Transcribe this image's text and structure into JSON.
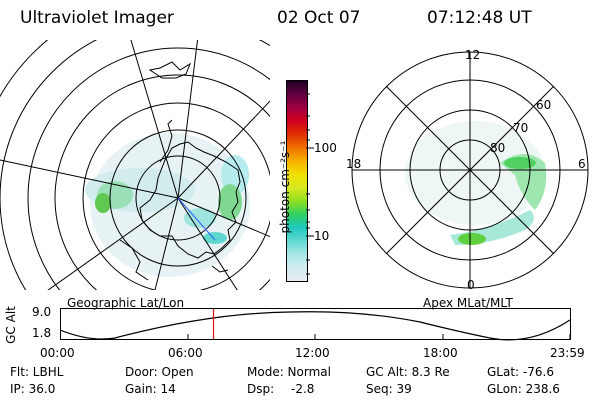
{
  "header": {
    "title": "Ultraviolet Imager",
    "date": "02 Oct 07",
    "time": "07:12:48 UT"
  },
  "left_map": {
    "caption": "Geographic Lat/Lon"
  },
  "right_map": {
    "caption": "Apex MLat/MLT",
    "mlt_labels": [
      "12",
      "18",
      "6",
      "0"
    ],
    "mlat_labels": [
      "60",
      "70",
      "80"
    ]
  },
  "colorbar": {
    "unit_label": "photon cm⁻²s⁻¹",
    "tick_labels": [
      "100",
      "10"
    ],
    "colors": [
      "#e8eef0",
      "#d0eaf0",
      "#a8e8e8",
      "#60d8d0",
      "#20c8c0",
      "#30d060",
      "#90e020",
      "#d8e820",
      "#f0e000",
      "#f8b000",
      "#f07000",
      "#e03000",
      "#d00020",
      "#a00040",
      "#600040",
      "#200020"
    ]
  },
  "altitude_plot": {
    "ylabel": "GC Alt",
    "y_ticks": [
      "9.0",
      "1.8"
    ],
    "x_ticks": [
      "00:00",
      "06:00",
      "12:00",
      "18:00",
      "23:59"
    ],
    "current_time_fraction": 0.3
  },
  "info": {
    "row1": {
      "filter": "Flt: LBHL",
      "door": "Door: Open",
      "mode": "Mode: Normal",
      "gc_alt": "GC Alt: 8.3 Re",
      "glat": "GLat: -76.6"
    },
    "row2": {
      "ip": "IP: 36.0",
      "gain": "Gain: 14",
      "dsp_label": "Dsp:",
      "dsp_value": "-2.8",
      "seq": "Seq: 39",
      "glon": "GLon: 238.6"
    }
  }
}
